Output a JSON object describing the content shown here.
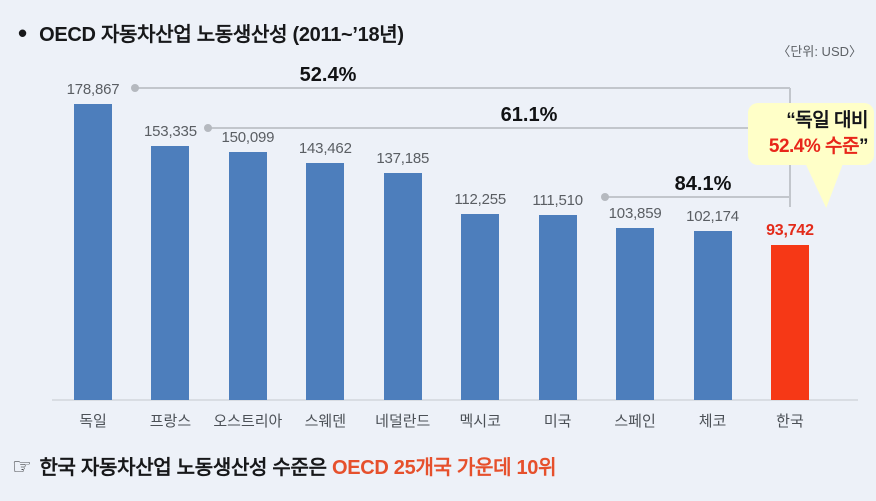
{
  "title": {
    "bullet": "•",
    "text": "OECD 자동차산업 노동생산성 (2011~’18년)"
  },
  "unit_label": "〈단위: USD〉",
  "chart_data": {
    "type": "bar",
    "title": "OECD 자동차산업 노동생산성 (2011~'18년)",
    "unit": "USD",
    "categories": [
      "독일",
      "프랑스",
      "오스트리아",
      "스웨덴",
      "네덜란드",
      "멕시코",
      "미국",
      "스페인",
      "체코",
      "한국"
    ],
    "values": [
      178867,
      153335,
      150099,
      143462,
      137185,
      112255,
      111510,
      103859,
      102174,
      93742
    ],
    "value_labels": [
      "178,867",
      "153,335",
      "150,099",
      "143,462",
      "137,185",
      "112,255",
      "111,510",
      "103,859",
      "102,174",
      "93,742"
    ],
    "highlight_index": 9,
    "bar_color": "#4d7ebc",
    "highlight_color": "#f63816",
    "annotations": [
      {
        "label": "52.4%",
        "from_index": 0,
        "to_index": 9
      },
      {
        "label": "61.1%",
        "from_index": 1,
        "to_index": 9
      },
      {
        "label": "84.1%",
        "from_index": 6,
        "to_index": 9
      }
    ],
    "ylim": [
      0,
      178867
    ],
    "grid": false,
    "legend": false
  },
  "callout": {
    "open_quote": "“",
    "line1": "독일 대비",
    "line2_red": "52.4% 수준",
    "close_quote": "”"
  },
  "footer": {
    "pointer": "☞",
    "black_text": "한국 자동차산업 노동생산성 수준은 ",
    "red_text": "OECD 25개국 가운데 ",
    "red_bold": "10위"
  },
  "colors": {
    "background": "#edf1f8",
    "bar_blue": "#4d7ebc",
    "bar_red": "#f63816",
    "value_red": "#e32b1a",
    "footer_red": "#e6502c",
    "callout_bg": "#ffffc8",
    "connector_grey": "#c2c6cc"
  }
}
